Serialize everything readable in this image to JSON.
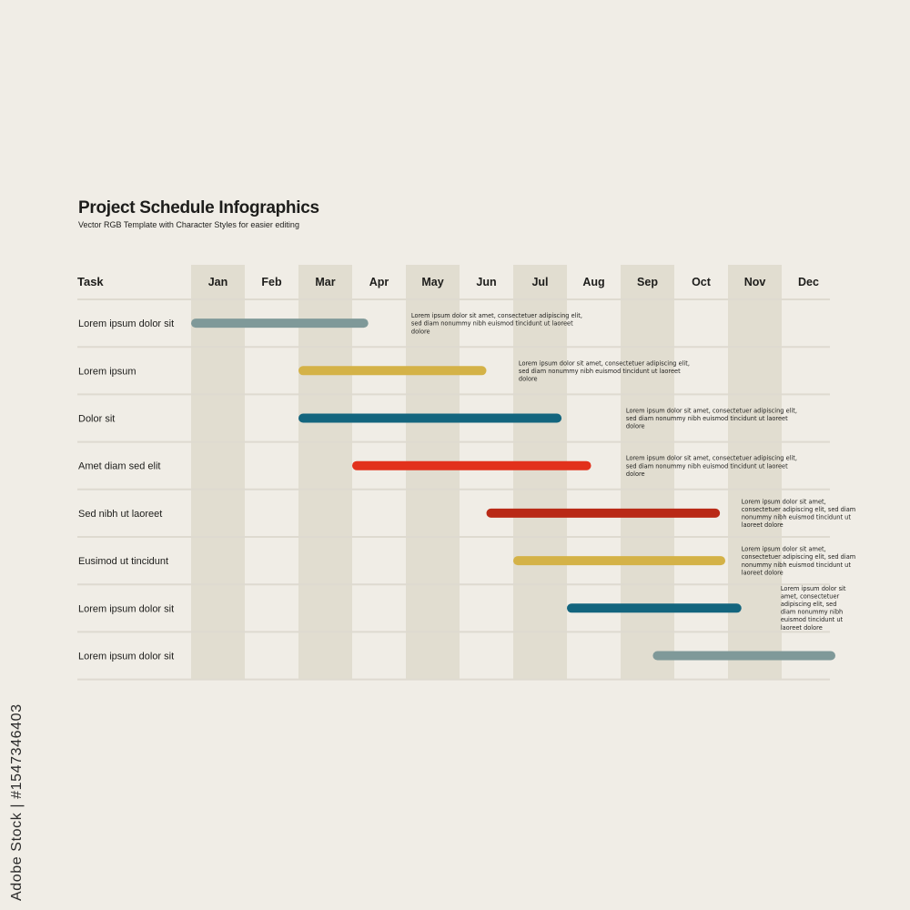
{
  "title": "Project Schedule Infographics",
  "subtitle": "Vector RGB Template with Character Styles for easier editing",
  "watermark": "Adobe Stock | #1547346403",
  "colors": {
    "background": "#f0ede6",
    "shade": "#e1ddd0",
    "divider": "#dedad0",
    "text": "#1d1d1b",
    "gray": "#7f9999",
    "mustard": "#d4b247",
    "teal": "#13657e",
    "red": "#e2311c",
    "darkred": "#b92916"
  },
  "chart_data": {
    "type": "gantt",
    "title": "Project Schedule Infographics",
    "task_header": "Task",
    "months": [
      "Jan",
      "Feb",
      "Mar",
      "Apr",
      "May",
      "Jun",
      "Jul",
      "Aug",
      "Sep",
      "Oct",
      "Nov",
      "Dec"
    ],
    "shaded_months": [
      "Jan",
      "Mar",
      "May",
      "Jul",
      "Sep",
      "Nov"
    ],
    "tasks": [
      {
        "name": "Lorem ipsum dolor sit",
        "start": 0.0,
        "end": 3.3,
        "color": "gray",
        "note": [
          "Lorem ipsum dolor sit amet, consectetuer adipiscing elit,",
          "sed diam nonummy nibh euismod tincidunt ut laoreet",
          "dolore"
        ],
        "note_start": 4.1
      },
      {
        "name": "Lorem ipsum",
        "start": 2.0,
        "end": 5.5,
        "color": "mustard",
        "note": [
          "Lorem ipsum dolor sit amet, consectetuer adipiscing elit,",
          "sed diam nonummy nibh euismod tincidunt ut laoreet",
          "dolore"
        ],
        "note_start": 6.1
      },
      {
        "name": "Dolor sit",
        "start": 2.0,
        "end": 6.9,
        "color": "teal",
        "note": [
          "Lorem ipsum dolor sit amet, consectetuer adipiscing elit,",
          "sed diam nonummy nibh euismod tincidunt ut laoreet",
          "dolore"
        ],
        "note_start": 8.1
      },
      {
        "name": "Amet diam sed elit",
        "start": 3.0,
        "end": 7.45,
        "color": "red",
        "note": [
          "Lorem ipsum dolor sit amet, consectetuer adipiscing elit,",
          "sed diam nonummy nibh euismod tincidunt ut laoreet",
          "dolore"
        ],
        "note_start": 8.1
      },
      {
        "name": "Sed nibh ut laoreet",
        "start": 5.5,
        "end": 9.85,
        "color": "darkred",
        "note": [
          "Lorem ipsum dolor sit amet,",
          "consectetuer adipiscing elit, sed diam",
          "nonummy nibh euismod tincidunt ut",
          "laoreet dolore"
        ],
        "note_start": 10.25
      },
      {
        "name": "Eusimod ut tincidunt",
        "start": 6.0,
        "end": 9.95,
        "color": "mustard",
        "note": [
          "Lorem ipsum dolor sit amet,",
          "consectetuer adipiscing elit, sed diam",
          "nonummy nibh euismod tincidunt ut",
          "laoreet dolore"
        ],
        "note_start": 10.25
      },
      {
        "name": "Lorem ipsum dolor sit",
        "start": 7.0,
        "end": 10.25,
        "color": "teal",
        "note": [
          "Lorem ipsum dolor sit",
          "amet, consectetuer",
          "adipiscing elit, sed",
          "diam nonummy nibh",
          "euismod tincidunt ut",
          "laoreet dolore"
        ],
        "note_start": 10.98
      },
      {
        "name": "Lorem ipsum dolor sit",
        "start": 8.6,
        "end": 12.0,
        "color": "gray",
        "note": [],
        "note_start": null
      }
    ]
  }
}
